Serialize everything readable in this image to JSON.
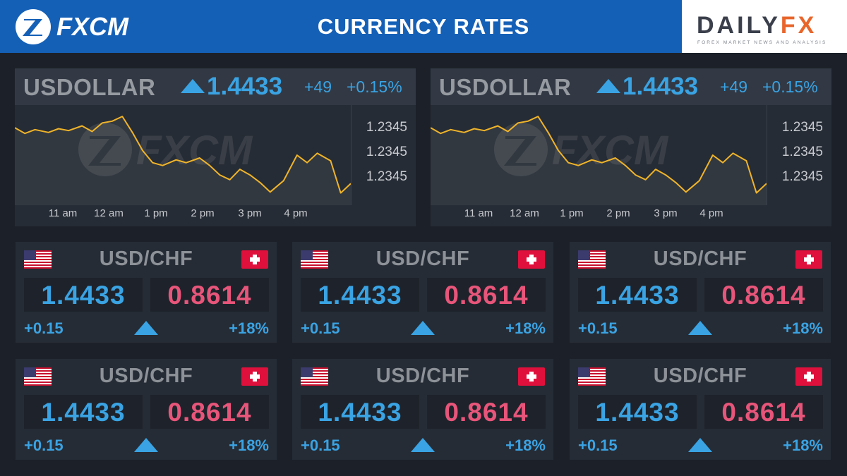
{
  "header": {
    "brand": "FXCM",
    "title": "CURRENCY RATES",
    "partner_logo": {
      "part1": "DAILY",
      "part2": "FX",
      "tagline": "FOREX MARKET NEWS AND ANALYSIS"
    }
  },
  "colors": {
    "header_bg": "#1560b7",
    "positive": "#3aa3e3",
    "ask": "#e8557a",
    "line": "#f0b429",
    "panel": "#262c35"
  },
  "chart_panels": [
    {
      "symbol": "USDOLLAR",
      "rate": "1.4433",
      "change": "+49",
      "change_pct": "+0.15%",
      "direction": "up",
      "watermark": "FXCM",
      "y_labels": [
        "1.2345",
        "1.2345",
        "1.2345"
      ],
      "x_labels": [
        "11 am",
        "12 am",
        "1 pm",
        "2 pm",
        "3 pm",
        "4 pm"
      ]
    },
    {
      "symbol": "USDOLLAR",
      "rate": "1.4433",
      "change": "+49",
      "change_pct": "+0.15%",
      "direction": "up",
      "watermark": "FXCM",
      "y_labels": [
        "1.2345",
        "1.2345",
        "1.2345"
      ],
      "x_labels": [
        "11 am",
        "12 am",
        "1 pm",
        "2 pm",
        "3 pm",
        "4 pm"
      ]
    }
  ],
  "chart_data": [
    {
      "type": "area",
      "title": "USDOLLAR",
      "x_tick_labels": [
        "11 am",
        "12 am",
        "1 pm",
        "2 pm",
        "3 pm",
        "4 pm"
      ],
      "y_tick_labels": [
        "1.2345",
        "1.2345",
        "1.2345"
      ],
      "x": [
        0,
        3,
        6,
        10,
        13,
        16,
        20,
        23,
        26,
        29,
        32,
        35,
        38,
        41,
        44,
        48,
        51,
        55,
        58,
        61,
        64,
        67,
        70,
        73,
        76,
        80,
        84,
        87,
        90,
        94,
        97,
        100
      ],
      "values": [
        79,
        73,
        77,
        74,
        78,
        76,
        81,
        75,
        84,
        86,
        91,
        74,
        55,
        42,
        39,
        45,
        42,
        47,
        39,
        29,
        24,
        35,
        29,
        21,
        11,
        23,
        50,
        42,
        52,
        44,
        10,
        20
      ],
      "y_range": [
        0,
        100
      ],
      "grid": false,
      "legend": "none"
    },
    {
      "type": "area",
      "title": "USDOLLAR",
      "x_tick_labels": [
        "11 am",
        "12 am",
        "1 pm",
        "2 pm",
        "3 pm",
        "4 pm"
      ],
      "y_tick_labels": [
        "1.2345",
        "1.2345",
        "1.2345"
      ],
      "x": [
        0,
        3,
        6,
        10,
        13,
        16,
        20,
        23,
        26,
        29,
        32,
        35,
        38,
        41,
        44,
        48,
        51,
        55,
        58,
        61,
        64,
        67,
        70,
        73,
        76,
        80,
        84,
        87,
        90,
        94,
        97,
        100
      ],
      "values": [
        79,
        73,
        77,
        74,
        78,
        76,
        81,
        75,
        84,
        86,
        91,
        74,
        55,
        42,
        39,
        45,
        42,
        47,
        39,
        29,
        24,
        35,
        29,
        21,
        11,
        23,
        50,
        42,
        52,
        44,
        10,
        20
      ],
      "y_range": [
        0,
        100
      ],
      "grid": false,
      "legend": "none"
    }
  ],
  "cards": [
    {
      "pair": "USD/CHF",
      "bid": "1.4433",
      "ask": "0.8614",
      "change": "+0.15",
      "change_pct": "+18%",
      "direction": "up"
    },
    {
      "pair": "USD/CHF",
      "bid": "1.4433",
      "ask": "0.8614",
      "change": "+0.15",
      "change_pct": "+18%",
      "direction": "up"
    },
    {
      "pair": "USD/CHF",
      "bid": "1.4433",
      "ask": "0.8614",
      "change": "+0.15",
      "change_pct": "+18%",
      "direction": "up"
    },
    {
      "pair": "USD/CHF",
      "bid": "1.4433",
      "ask": "0.8614",
      "change": "+0.15",
      "change_pct": "+18%",
      "direction": "up"
    },
    {
      "pair": "USD/CHF",
      "bid": "1.4433",
      "ask": "0.8614",
      "change": "+0.15",
      "change_pct": "+18%",
      "direction": "up"
    },
    {
      "pair": "USD/CHF",
      "bid": "1.4433",
      "ask": "0.8614",
      "change": "+0.15",
      "change_pct": "+18%",
      "direction": "up"
    }
  ]
}
